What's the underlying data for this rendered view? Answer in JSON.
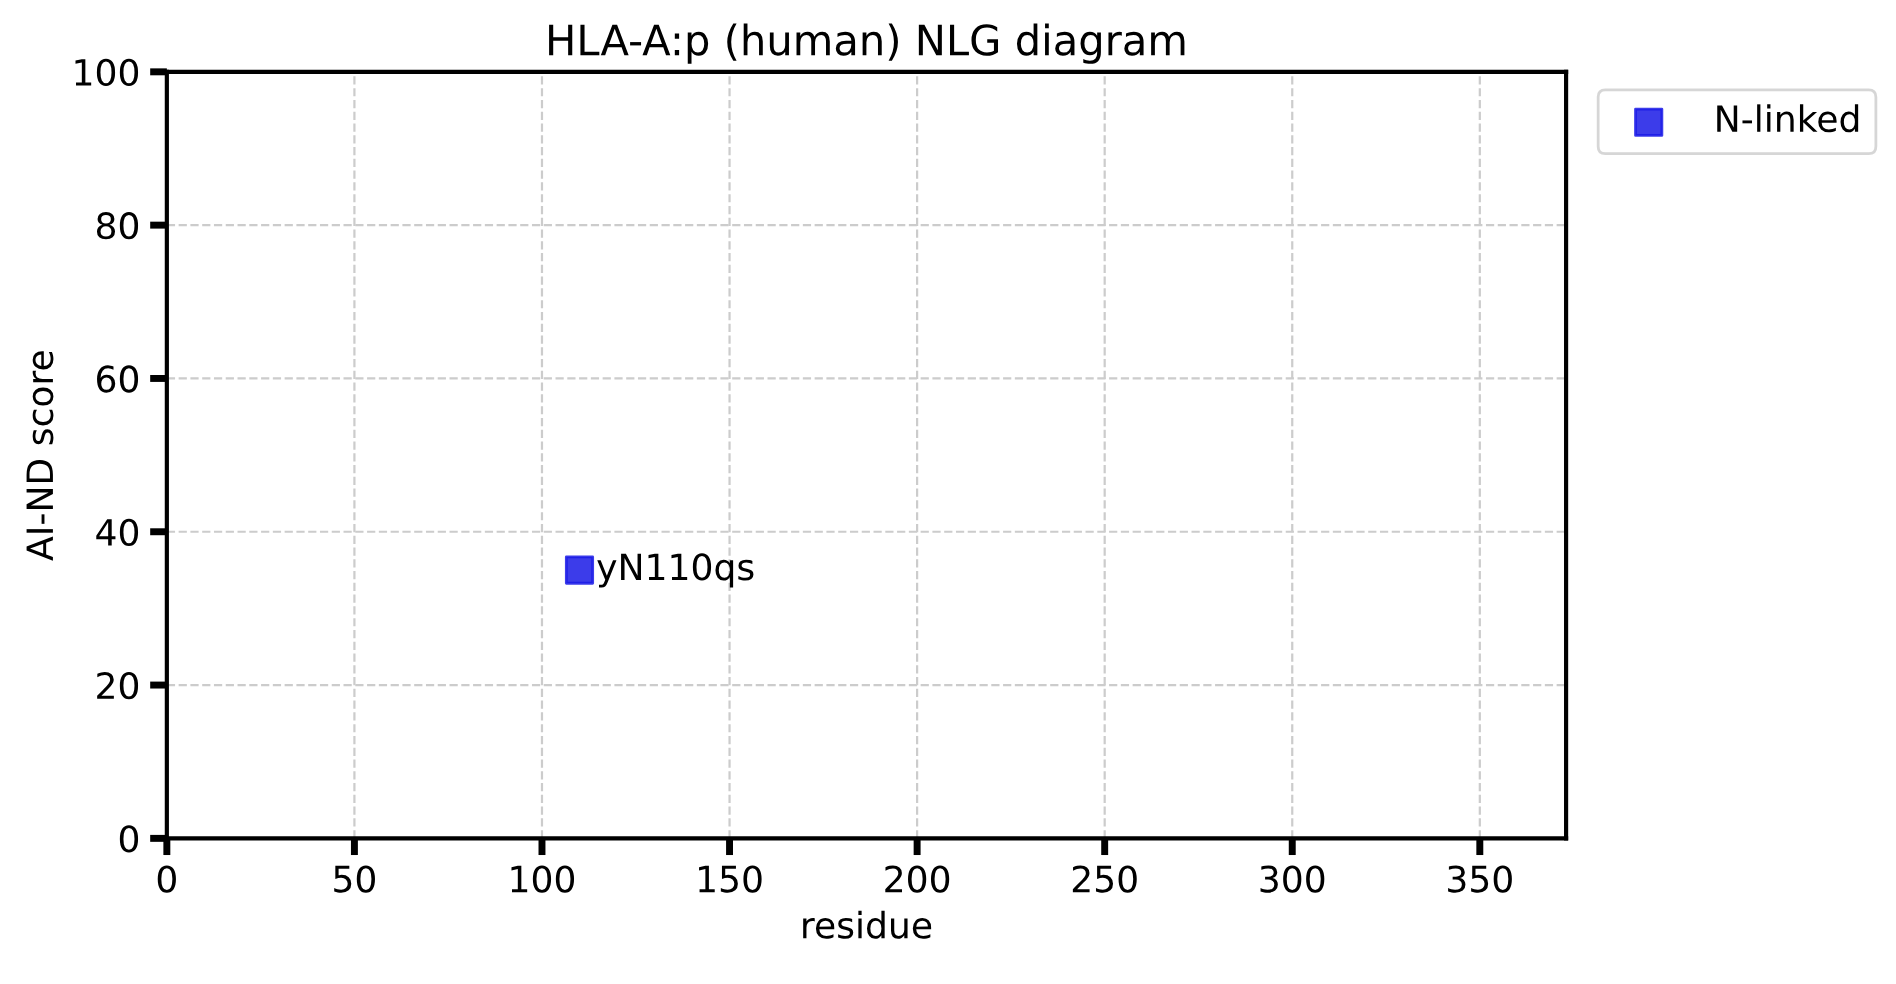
{
  "chart_data": {
    "type": "scatter",
    "title": "HLA-A:p (human) NLG diagram",
    "xlabel": "residue",
    "ylabel": "AI-ND score",
    "series": [
      {
        "name": "N-linked",
        "color": "#1a1ae6",
        "x": [
          110
        ],
        "values": [
          35
        ],
        "marker": "square"
      }
    ],
    "annotations": [
      {
        "text": "yN110qs",
        "x": 110,
        "y": 35
      }
    ],
    "xlim": [
      0,
      373
    ],
    "xticks": [
      0,
      50,
      100,
      150,
      200,
      250,
      300,
      350
    ],
    "ylim": [
      0,
      100
    ],
    "yticks": [
      0,
      20,
      40,
      60,
      80,
      100
    ],
    "grid": true,
    "legend": "top right"
  }
}
